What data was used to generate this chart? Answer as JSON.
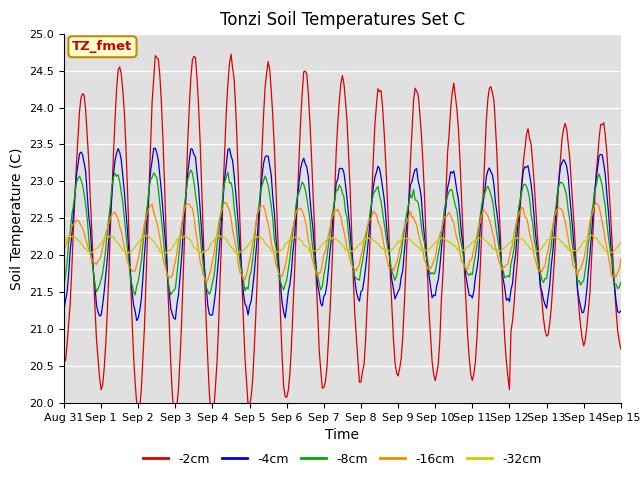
{
  "title": "Tonzi Soil Temperatures Set C",
  "xlabel": "Time",
  "ylabel": "Soil Temperature (C)",
  "ylim": [
    20.0,
    25.0
  ],
  "yticks": [
    20.0,
    20.5,
    21.0,
    21.5,
    22.0,
    22.5,
    23.0,
    23.5,
    24.0,
    24.5,
    25.0
  ],
  "bg_color": "#e0e0e0",
  "fig_color": "#ffffff",
  "annotation_text": "TZ_fmet",
  "annotation_bg": "#ffffcc",
  "annotation_border": "#cc8800",
  "annotation_text_color": "#cc0000",
  "series": [
    {
      "label": "-2cm",
      "color": "#dd0000"
    },
    {
      "label": "-4cm",
      "color": "#0000dd"
    },
    {
      "label": "-8cm",
      "color": "#00aa00"
    },
    {
      "label": "-16cm",
      "color": "#ff8800"
    },
    {
      "label": "-32cm",
      "color": "#cccc00"
    }
  ],
  "xtick_labels": [
    "Aug 31",
    "Sep 1",
    "Sep 2",
    "Sep 3",
    "Sep 4",
    "Sep 5",
    "Sep 6",
    "Sep 7",
    "Sep 8",
    "Sep 9",
    "Sep 10",
    "Sep 11",
    "Sep 12",
    "Sep 13",
    "Sep 14",
    "Sep 15"
  ],
  "title_fontsize": 12,
  "axis_label_fontsize": 10,
  "tick_fontsize": 8,
  "legend_fontsize": 9
}
